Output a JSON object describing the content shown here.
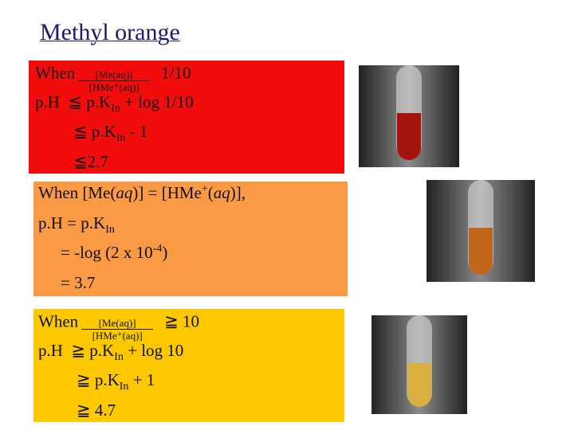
{
  "title": "Methyl orange",
  "panels": [
    {
      "color": "#f20d0d",
      "lines": [
        [
          {
            "text": "When"
          },
          {
            "numerator": "[Me(aq)]",
            "denominator": "[HMe⁺(aq)]"
          },
          {
            "text": "1/10"
          }
        ],
        [
          {
            "text": "p.H  ≦ p.K"
          },
          {
            "text": "In",
            "format": "sub"
          },
          {
            "text": " + log 1/10"
          }
        ],
        [
          {
            "text": "≦ p.K"
          },
          {
            "text": "In",
            "format": "sub"
          },
          {
            "text": " - 1"
          }
        ],
        [
          {
            "text": "≦2.7"
          }
        ]
      ]
    },
    {
      "color": "#fa9a45",
      "lines": [
        [
          {
            "text": "When [Me("
          },
          {
            "text": "aq",
            "format": "italic"
          },
          {
            "text": ")] = [HMe"
          },
          {
            "text": "+",
            "format": "sup"
          },
          {
            "text": "("
          },
          {
            "text": "aq",
            "format": "italic"
          },
          {
            "text": ")],"
          }
        ],
        [
          {
            "text": "p.H = p.K"
          },
          {
            "text": "In",
            "format": "sub"
          }
        ],
        [
          {
            "text": "= -log (2 x 10"
          },
          {
            "text": "-4",
            "format": "sup"
          },
          {
            "text": ")"
          }
        ],
        [
          {
            "text": "= 3.7"
          }
        ]
      ]
    },
    {
      "color": "#fdc800",
      "lines": [
        [
          {
            "text": "When"
          },
          {
            "numerator": "[Me(aq)]",
            "denominator": "[HMe⁺(aq)]"
          },
          {
            "text": "≧ 10"
          }
        ],
        [
          {
            "text": "p.H  ≧ p.K"
          },
          {
            "text": "In",
            "format": "sub"
          },
          {
            "text": " + log 10"
          }
        ],
        [
          {
            "text": "≧ p.K"
          },
          {
            "text": "In",
            "format": "sub"
          },
          {
            "text": " + 1"
          }
        ],
        [
          {
            "text": "≧ 4.7"
          }
        ]
      ]
    }
  ]
}
